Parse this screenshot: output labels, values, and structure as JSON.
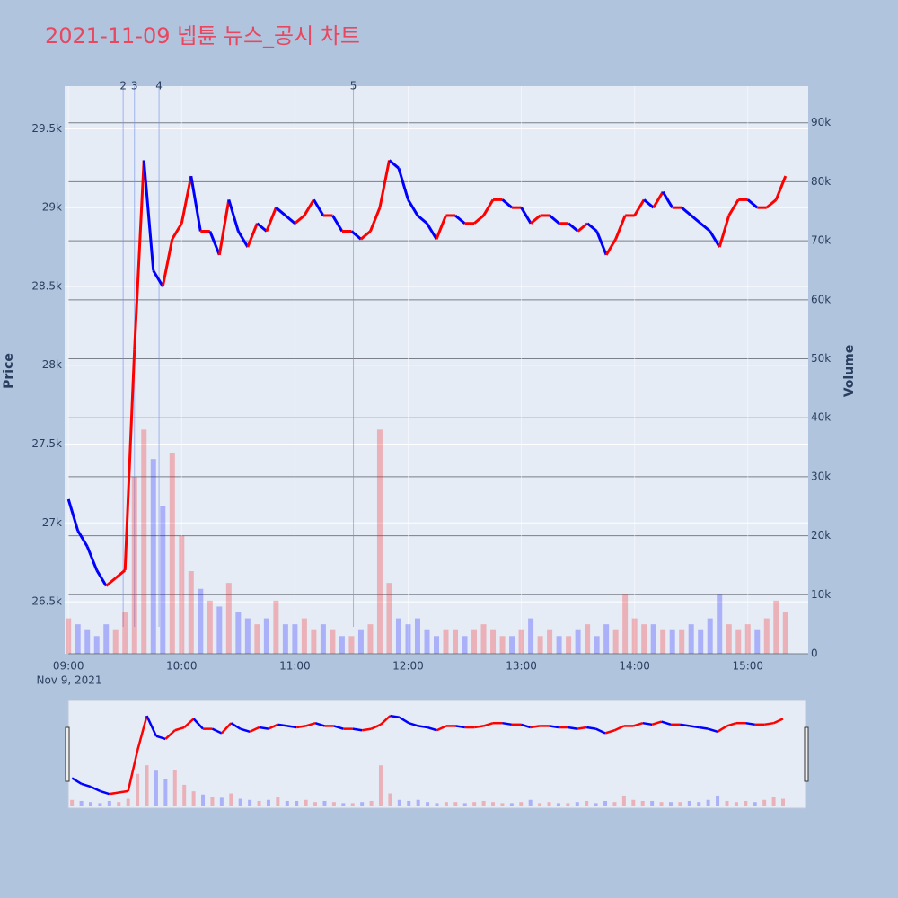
{
  "chart_data": {
    "type": "price_volume",
    "title": "2021-11-09 넵튠 뉴스_공시 차트",
    "y_label": "Price",
    "y2_label": "Volume",
    "x_date_label": "Nov 9, 2021",
    "x": [
      "09:00",
      "09:05",
      "09:10",
      "09:15",
      "09:20",
      "09:25",
      "09:30",
      "09:35",
      "09:40",
      "09:45",
      "09:50",
      "09:55",
      "10:00",
      "10:05",
      "10:10",
      "10:15",
      "10:20",
      "10:25",
      "10:30",
      "10:35",
      "10:40",
      "10:45",
      "10:50",
      "10:55",
      "11:00",
      "11:05",
      "11:10",
      "11:15",
      "11:20",
      "11:25",
      "11:30",
      "11:35",
      "11:40",
      "11:45",
      "11:50",
      "11:55",
      "12:00",
      "12:05",
      "12:10",
      "12:15",
      "12:20",
      "12:25",
      "12:30",
      "12:35",
      "12:40",
      "12:45",
      "12:50",
      "12:55",
      "13:00",
      "13:05",
      "13:10",
      "13:15",
      "13:20",
      "13:25",
      "13:30",
      "13:35",
      "13:40",
      "13:45",
      "13:50",
      "13:55",
      "14:00",
      "14:05",
      "14:10",
      "14:15",
      "14:20",
      "14:25",
      "14:30",
      "14:35",
      "14:40",
      "14:45",
      "14:50",
      "14:55",
      "15:00",
      "15:05",
      "15:10",
      "15:15",
      "15:20"
    ],
    "series": [
      {
        "name": "Price",
        "up_color": "#ff0000",
        "down_color": "#0000ff",
        "values": [
          27150,
          26950,
          26850,
          26700,
          26600,
          26650,
          26700,
          28100,
          29300,
          28600,
          28500,
          28800,
          28900,
          29200,
          28850,
          28850,
          28700,
          29050,
          28850,
          28750,
          28900,
          28850,
          29000,
          28950,
          28900,
          28950,
          29050,
          28950,
          28950,
          28850,
          28850,
          28800,
          28850,
          29000,
          29300,
          29250,
          29050,
          28950,
          28900,
          28800,
          28950,
          28950,
          28900,
          28900,
          28950,
          29050,
          29050,
          29000,
          29000,
          28900,
          28950,
          28950,
          28900,
          28900,
          28850,
          28900,
          28850,
          28700,
          28800,
          28950,
          28950,
          29050,
          29000,
          29100,
          29000,
          29000,
          28950,
          28900,
          28850,
          28750,
          28950,
          29050,
          29050,
          29000,
          29000,
          29050,
          29200
        ]
      },
      {
        "name": "Volume",
        "axis": "y2",
        "values": [
          6000,
          5000,
          4000,
          3000,
          5000,
          4000,
          7000,
          30000,
          38000,
          33000,
          25000,
          34000,
          20000,
          14000,
          11000,
          9000,
          8000,
          12000,
          7000,
          6000,
          5000,
          6000,
          9000,
          5000,
          5000,
          6000,
          4000,
          5000,
          4000,
          3000,
          3000,
          4000,
          5000,
          38000,
          12000,
          6000,
          5000,
          6000,
          4000,
          3000,
          4000,
          4000,
          3000,
          4000,
          5000,
          4000,
          3000,
          3000,
          4000,
          6000,
          3000,
          4000,
          3000,
          3000,
          4000,
          5000,
          3000,
          5000,
          4000,
          10000,
          6000,
          5000,
          5000,
          4000,
          4000,
          4000,
          5000,
          4000,
          6000,
          10000,
          5000,
          4000,
          5000,
          4000,
          6000,
          9000,
          7000
        ]
      }
    ],
    "annotations": [
      {
        "x": "09:29",
        "text": "2"
      },
      {
        "x": "09:35",
        "text": "3"
      },
      {
        "x": "09:48",
        "text": "4"
      },
      {
        "x": "11:31",
        "text": "5"
      }
    ],
    "xlim": [
      "08:58",
      "15:32"
    ],
    "xticks": [
      "09:00",
      "10:00",
      "11:00",
      "12:00",
      "13:00",
      "14:00",
      "15:00"
    ],
    "ylim": [
      26170,
      29770
    ],
    "yticks": [
      {
        "value": 26500,
        "label": "26.5k"
      },
      {
        "value": 27000,
        "label": "27k"
      },
      {
        "value": 27500,
        "label": "27.5k"
      },
      {
        "value": 28000,
        "label": "28k"
      },
      {
        "value": 28500,
        "label": "28.5k"
      },
      {
        "value": 29000,
        "label": "29k"
      },
      {
        "value": 29500,
        "label": "29.5k"
      }
    ],
    "y2lim": [
      0,
      96200
    ],
    "y2ticks": [
      0,
      {
        "value": 10000,
        "label": "10k"
      },
      {
        "value": 20000,
        "label": "20k"
      },
      {
        "value": 30000,
        "label": "30k"
      },
      {
        "value": 40000,
        "label": "40k"
      },
      {
        "value": 50000,
        "label": "50k"
      },
      {
        "value": 60000,
        "label": "60k"
      },
      {
        "value": 70000,
        "label": "70k"
      },
      {
        "value": 80000,
        "label": "80k"
      },
      {
        "value": 90000,
        "label": "90k"
      }
    ],
    "grid": true,
    "range_slider": true
  }
}
